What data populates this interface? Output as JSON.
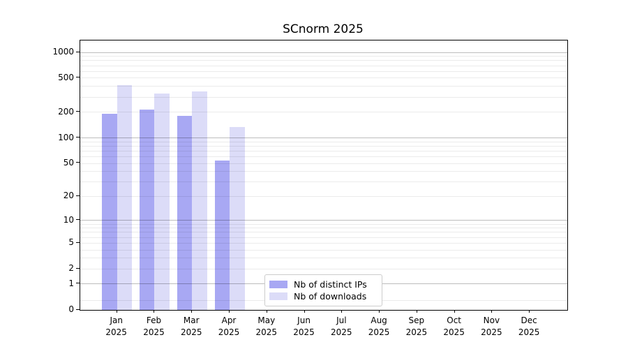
{
  "chart_data": {
    "type": "bar",
    "title": "SCnorm 2025",
    "categories": [
      "Jan",
      "Feb",
      "Mar",
      "Apr",
      "May",
      "Jun",
      "Jul",
      "Aug",
      "Sep",
      "Oct",
      "Nov",
      "Dec"
    ],
    "x_tick_year": "2025",
    "series": [
      {
        "name": "Nb of distinct IPs",
        "color": "#a8a8f3",
        "values": [
          190,
          215,
          180,
          54,
          0,
          0,
          0,
          0,
          0,
          0,
          0,
          0
        ]
      },
      {
        "name": "Nb of downloads",
        "color": "#dcdcf8",
        "values": [
          415,
          330,
          350,
          135,
          0,
          0,
          0,
          0,
          0,
          0,
          0,
          0
        ]
      }
    ],
    "y_ticks": [
      0,
      1,
      2,
      5,
      10,
      20,
      50,
      100,
      200,
      500,
      1000
    ],
    "y_scale": "log1p",
    "ylim": [
      0,
      1370
    ],
    "grid": "horizontal, major decades darker + log minors",
    "legend_position": "lower center",
    "background_color": "#ffffff",
    "frame_color": "#000000"
  }
}
